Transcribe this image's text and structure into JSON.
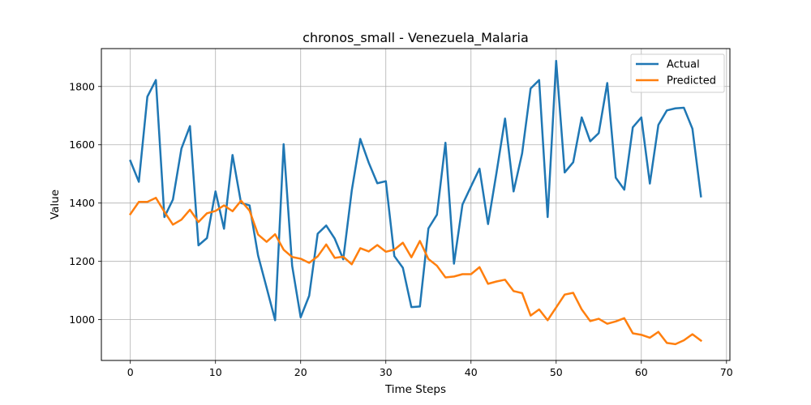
{
  "chart_data": {
    "type": "line",
    "title": "chronos_small - Venezuela_Malaria",
    "xlabel": "Time Steps",
    "ylabel": "Value",
    "xlim": [
      -3.4,
      70.4
    ],
    "ylim": [
      860,
      1930
    ],
    "xticks": [
      0,
      10,
      20,
      30,
      40,
      50,
      60,
      70
    ],
    "yticks": [
      1000,
      1200,
      1400,
      1600,
      1800
    ],
    "grid": true,
    "legend_position": "top-right",
    "x": [
      0,
      1,
      2,
      3,
      4,
      5,
      6,
      7,
      8,
      9,
      10,
      11,
      12,
      13,
      14,
      15,
      16,
      17,
      18,
      19,
      20,
      21,
      22,
      23,
      24,
      25,
      26,
      27,
      28,
      29,
      30,
      31,
      32,
      33,
      34,
      35,
      36,
      37,
      38,
      39,
      40,
      41,
      42,
      43,
      44,
      45,
      46,
      47,
      48,
      49,
      50,
      51,
      52,
      53,
      54,
      55,
      56,
      57,
      58,
      59,
      60,
      61,
      62,
      63,
      64,
      65,
      66,
      67
    ],
    "series": [
      {
        "name": "Actual",
        "color": "#1f77b4",
        "values": [
          1545,
          1473,
          1765,
          1822,
          1352,
          1412,
          1587,
          1664,
          1255,
          1280,
          1440,
          1312,
          1565,
          1400,
          1392,
          1220,
          1110,
          998,
          1602,
          1185,
          1008,
          1082,
          1295,
          1323,
          1278,
          1207,
          1443,
          1620,
          1538,
          1468,
          1475,
          1218,
          1178,
          1043,
          1045,
          1313,
          1360,
          1607,
          1192,
          1395,
          1457,
          1518,
          1328,
          1505,
          1690,
          1440,
          1570,
          1793,
          1822,
          1352,
          1888,
          1505,
          1540,
          1694,
          1612,
          1640,
          1812,
          1487,
          1446,
          1660,
          1694,
          1467,
          1668,
          1718,
          1725,
          1727,
          1655,
          1423
        ]
      },
      {
        "name": "Predicted",
        "color": "#ff7f0e",
        "values": [
          1362,
          1404,
          1404,
          1418,
          1370,
          1326,
          1343,
          1377,
          1335,
          1365,
          1373,
          1392,
          1372,
          1408,
          1374,
          1292,
          1267,
          1293,
          1240,
          1215,
          1209,
          1195,
          1217,
          1258,
          1212,
          1216,
          1190,
          1245,
          1234,
          1256,
          1233,
          1240,
          1264,
          1214,
          1270,
          1208,
          1185,
          1145,
          1148,
          1156,
          1156,
          1180,
          1123,
          1131,
          1137,
          1098,
          1091,
          1014,
          1035,
          998,
          1042,
          1086,
          1092,
          1035,
          995,
          1003,
          986,
          994,
          1005,
          953,
          948,
          938,
          958,
          920,
          916,
          929,
          950,
          928
        ]
      }
    ]
  }
}
